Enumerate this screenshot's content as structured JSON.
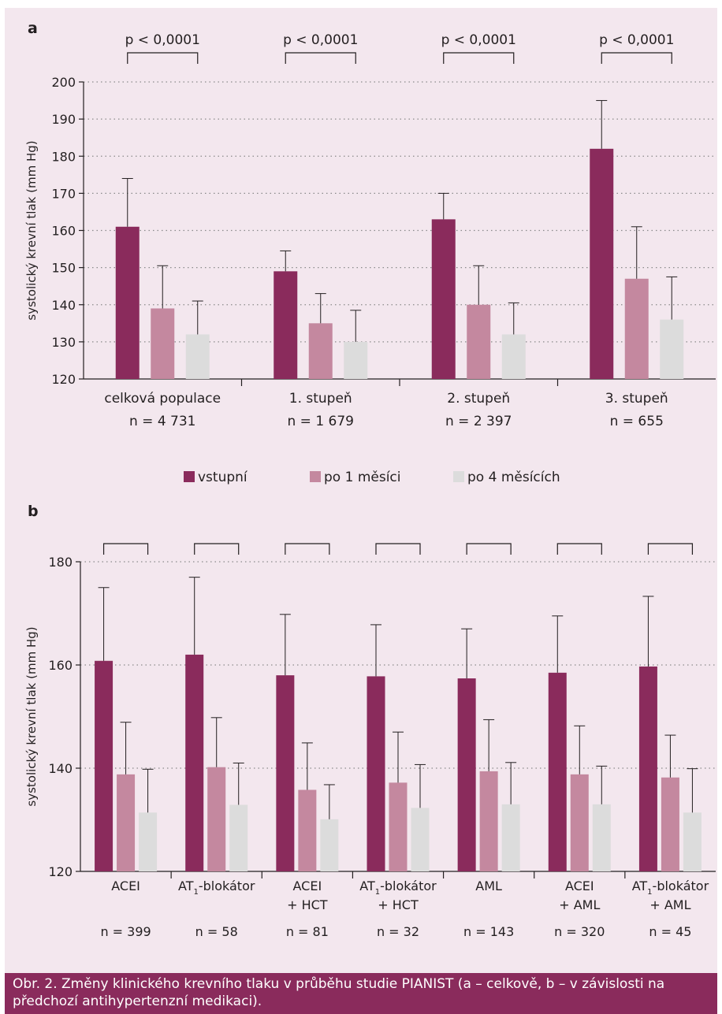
{
  "colors": {
    "vstupni": "#8a2b5c",
    "po1": "#c4889f",
    "po4": "#dcdcdc",
    "frame": "#f3e7ee",
    "caption_bg": "#8a2b5c"
  },
  "legend": [
    {
      "label": "vstupní",
      "color": "#8a2b5c"
    },
    {
      "label": "po 1 měsíci",
      "color": "#c4889f"
    },
    {
      "label": "po 4 měsících",
      "color": "#dcdcdc"
    }
  ],
  "caption": "Obr. 2. Změny klinického krevního tlaku v průběhu studie PIANIST (a – celkově, b – v závislosti na předchozí antihypertenzní medikaci).",
  "chart_data": [
    {
      "type": "bar",
      "panel_label": "a",
      "title": "",
      "ylabel": "systolický krevní tlak (mm Hg)",
      "xlabel": "",
      "ylim": [
        120,
        200
      ],
      "yticks": [
        120,
        130,
        140,
        150,
        160,
        170,
        180,
        190,
        200
      ],
      "grid": true,
      "legend_position": "bottom",
      "categories": [
        {
          "label": "celková populace",
          "n": "n = 4 731"
        },
        {
          "label": "1. stupeň",
          "n": "n = 1 679"
        },
        {
          "label": "2. stupeň",
          "n": "n = 2 397"
        },
        {
          "label": "3. stupeň",
          "n": "n = 655"
        }
      ],
      "series": [
        {
          "name": "vstupní",
          "values": [
            161,
            149,
            163,
            182
          ],
          "errors": [
            13,
            5.5,
            7,
            13
          ]
        },
        {
          "name": "po 1 měsíci",
          "values": [
            139,
            135,
            140,
            147
          ],
          "errors": [
            11.5,
            8,
            10.5,
            14
          ]
        },
        {
          "name": "po 4 měsících",
          "values": [
            132,
            130,
            132,
            136
          ],
          "errors": [
            9,
            8.5,
            8.5,
            11.5
          ]
        }
      ],
      "significance": [
        "p < 0,0001",
        "p < 0,0001",
        "p < 0,0001",
        "p < 0,0001"
      ]
    },
    {
      "type": "bar",
      "panel_label": "b",
      "title": "",
      "ylabel": "systolický krevní tlak (mm Hg)",
      "xlabel": "",
      "ylim": [
        120,
        180
      ],
      "yticks": [
        120,
        140,
        160,
        180
      ],
      "grid": true,
      "categories": [
        {
          "label": "ACEI",
          "label2": "",
          "sub": "",
          "n": "n = 399"
        },
        {
          "label": "AT",
          "label2": "",
          "sub": "1",
          "suffix": "-blokátor",
          "n": "n = 58"
        },
        {
          "label": "ACEI",
          "label2": "+ HCT",
          "sub": "",
          "n": "n = 81"
        },
        {
          "label": "AT",
          "label2": "+ HCT",
          "sub": "1",
          "suffix": "-blokátor",
          "n": "n = 32"
        },
        {
          "label": "AML",
          "label2": "",
          "sub": "",
          "n": "n = 143"
        },
        {
          "label": "ACEI",
          "label2": "+ AML",
          "sub": "",
          "n": "n = 320"
        },
        {
          "label": "AT",
          "label2": "+ AML",
          "sub": "1",
          "suffix": "-blokátor",
          "n": "n = 45"
        }
      ],
      "series": [
        {
          "name": "vstupní",
          "values": [
            160.8,
            162,
            158,
            157.8,
            157.4,
            158.5,
            159.7
          ],
          "errors": [
            14.2,
            15,
            11.8,
            10,
            9.6,
            11,
            13.6
          ]
        },
        {
          "name": "po 1 měsíci",
          "values": [
            138.8,
            140.2,
            135.8,
            137.2,
            139.4,
            138.8,
            138.2
          ],
          "errors": [
            10.1,
            9.6,
            9.1,
            9.8,
            10,
            9.4,
            8.2
          ]
        },
        {
          "name": "po 4 měsících",
          "values": [
            131.4,
            132.9,
            130.1,
            132.3,
            133,
            133,
            131.4
          ],
          "errors": [
            8.4,
            8.1,
            6.7,
            8.4,
            8.1,
            7.4,
            8.5
          ]
        }
      ]
    }
  ]
}
